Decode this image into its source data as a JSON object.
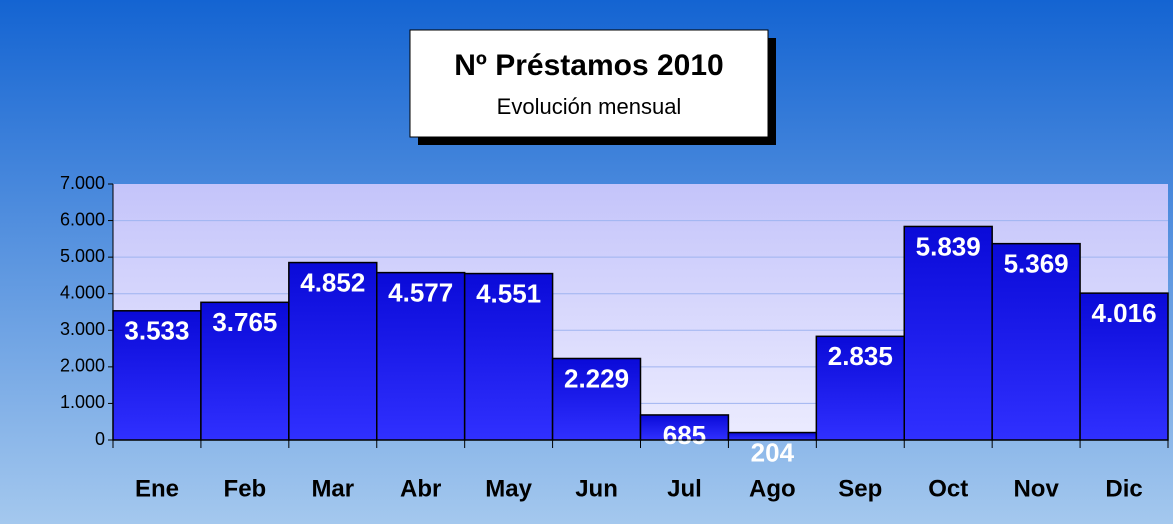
{
  "chart_data": {
    "type": "bar",
    "title": "Nº Préstamos 2010",
    "subtitle": "Evolución mensual",
    "categories": [
      "Ene",
      "Feb",
      "Mar",
      "Abr",
      "May",
      "Jun",
      "Jul",
      "Ago",
      "Sep",
      "Oct",
      "Nov",
      "Dic"
    ],
    "values": [
      3533,
      3765,
      4852,
      4577,
      4551,
      2229,
      685,
      204,
      2835,
      5839,
      5369,
      4016
    ],
    "value_labels": [
      "3.533",
      "3.765",
      "4.852",
      "4.577",
      "4.551",
      "2.229",
      "685",
      "204",
      "2.835",
      "5.839",
      "5.369",
      "4.016"
    ],
    "color": "#3030ff",
    "ylim": [
      0,
      7000
    ],
    "yticks": [
      0,
      {
        "value": 1000,
        "label": "1.000"
      },
      {
        "value": 2000,
        "label": "2.000"
      },
      {
        "value": 3000,
        "label": "3.000"
      },
      {
        "value": 4000,
        "label": "4.000"
      },
      {
        "value": 5000,
        "label": "5.000"
      },
      {
        "value": 6000,
        "label": "6.000"
      },
      {
        "value": 7000,
        "label": "7.000"
      }
    ],
    "grid": true
  }
}
